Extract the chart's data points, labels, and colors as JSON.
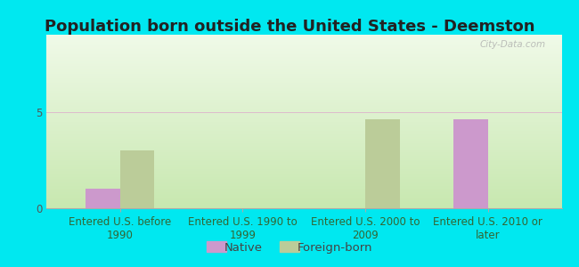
{
  "title": "Population born outside the United States - Deemston",
  "categories": [
    "Entered U.S. before\n1990",
    "Entered U.S. 1990 to\n1999",
    "Entered U.S. 2000 to\n2009",
    "Entered U.S. 2010 or\nlater"
  ],
  "native_values": [
    1,
    0,
    0,
    4.6
  ],
  "foreign_born_values": [
    3,
    0,
    4.6,
    0
  ],
  "native_color": "#cc99cc",
  "foreign_born_color": "#bbcc99",
  "ylim": [
    0,
    9
  ],
  "yticks": [
    0,
    5
  ],
  "bar_width": 0.28,
  "outer_bg": "#00e8f0",
  "watermark": "City-Data.com",
  "title_fontsize": 13,
  "tick_fontsize": 8.5,
  "legend_fontsize": 9.5,
  "title_color": "#222222",
  "tick_color": "#336633",
  "ytick_color": "#555555"
}
